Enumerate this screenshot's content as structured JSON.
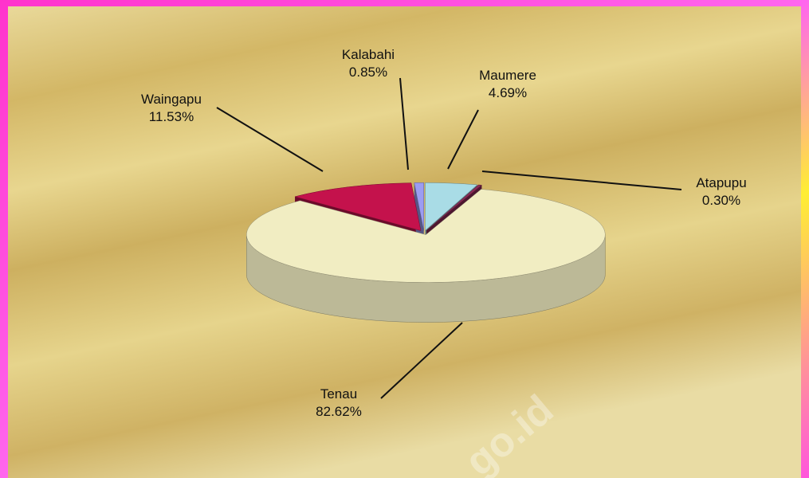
{
  "chart_data": {
    "type": "pie",
    "categories": [
      "Maumere",
      "Atapupu",
      "Tenau",
      "Waingapu",
      "Kalabahi"
    ],
    "values": [
      4.69,
      0.3,
      82.62,
      11.53,
      0.85
    ],
    "value_labels": [
      "4.69%",
      "0.30%",
      "82.62%",
      "11.53%",
      "0.85%"
    ],
    "colors": [
      "#a9dce6",
      "#8c2a56",
      "#f1edc2",
      "#c4124c",
      "#9c9cf2"
    ],
    "watermark": "go.id"
  }
}
